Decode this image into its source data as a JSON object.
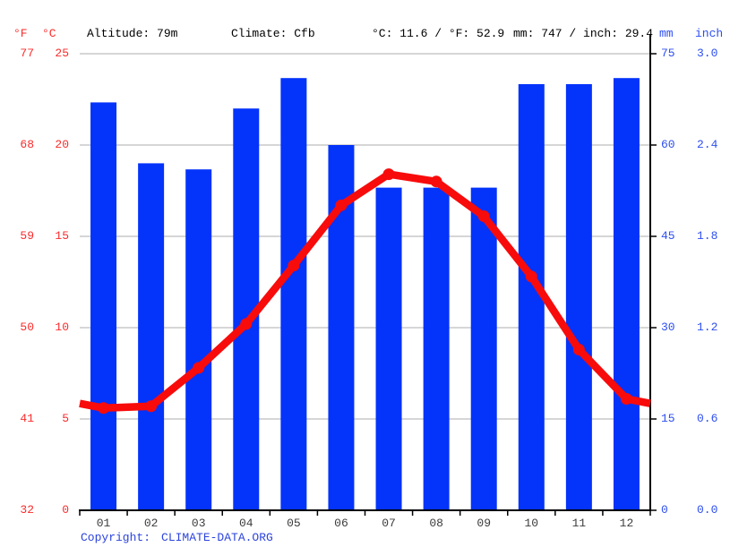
{
  "header": {
    "left_unit_f": "°F",
    "left_unit_c": "°C",
    "altitude": "Altitude: 79m",
    "climate": "Climate: Cfb",
    "temp_summary": "°C: 11.6 / °F: 52.9",
    "precip_summary": "mm: 747 / inch: 29.4",
    "right_unit_mm": "mm",
    "right_unit_inch": "inch"
  },
  "footer": {
    "copyright_label": "Copyright:",
    "copyright_link": "CLIMATE-DATA.ORG"
  },
  "colors": {
    "bar_blue": "#0433FA",
    "line_red": "#F80B0B",
    "label_red": "#F92C2C",
    "label_blue": "#2D4FF0",
    "month_label": "#3C3C3C",
    "grid": "#C8C8C8",
    "axis": "#000000",
    "link_blue": "#2C43DD"
  },
  "chart_data": {
    "type": "bar+line climograph",
    "title": "",
    "months": [
      "01",
      "02",
      "03",
      "04",
      "05",
      "06",
      "07",
      "08",
      "09",
      "10",
      "11",
      "12"
    ],
    "series": [
      {
        "name": "precipitation_mm",
        "type": "bar",
        "values": [
          67,
          57,
          56,
          66,
          71,
          60,
          53,
          53,
          53,
          70,
          70,
          71
        ]
      },
      {
        "name": "temperature_c",
        "type": "line",
        "values": [
          5.6,
          5.7,
          7.8,
          10.2,
          13.4,
          16.7,
          18.4,
          18.0,
          16.1,
          12.8,
          8.8,
          6.1
        ]
      }
    ],
    "left_axis": {
      "f_ticks": [
        "77",
        "68",
        "59",
        "50",
        "41",
        "32"
      ],
      "c_ticks": [
        "25",
        "20",
        "15",
        "10",
        "5",
        "0"
      ],
      "range_c": [
        0,
        25
      ]
    },
    "right_axis": {
      "mm_ticks": [
        "75",
        "60",
        "45",
        "30",
        "15",
        "0"
      ],
      "inch_ticks": [
        "3.0",
        "2.4",
        "1.8",
        "1.2",
        "0.6",
        "0.0"
      ],
      "range_mm": [
        0,
        75
      ]
    },
    "grid": "horizontal",
    "legend": "none",
    "annual_mean_temp_c": 11.6,
    "annual_precip_mm": 747
  }
}
